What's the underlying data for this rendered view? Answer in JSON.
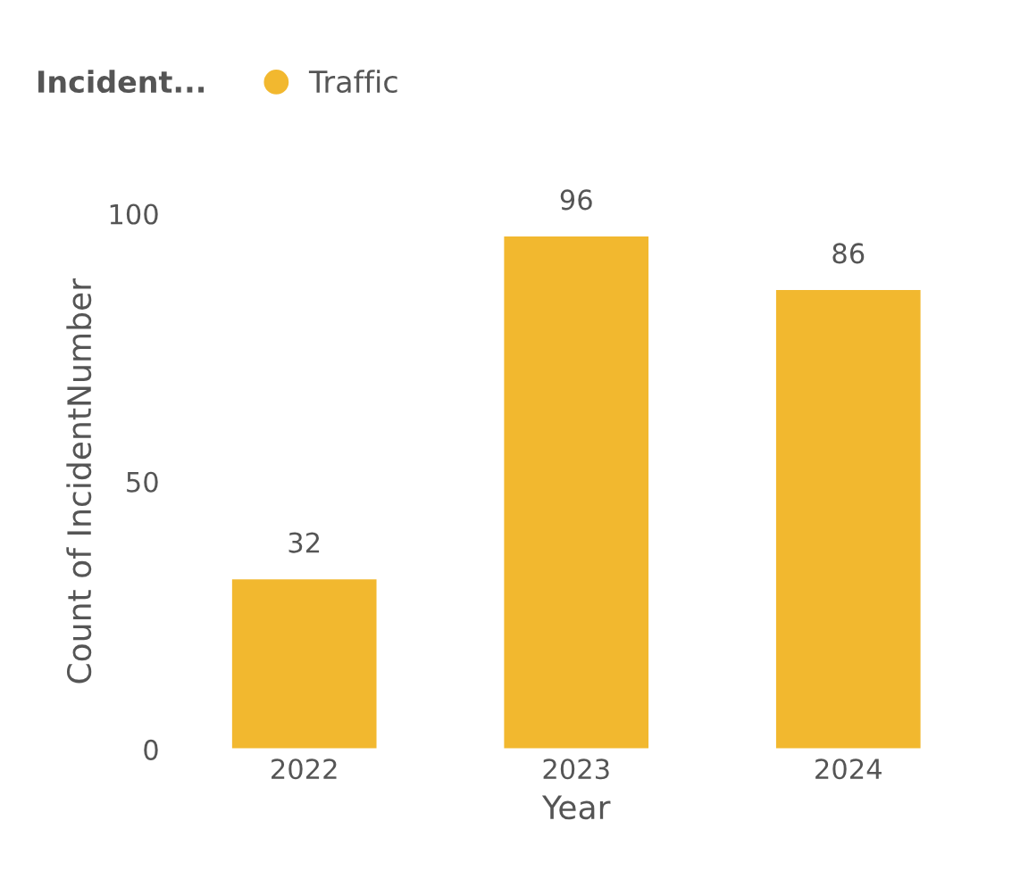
{
  "chart_data": {
    "type": "bar",
    "xlabel": "Year",
    "ylabel": "Count of IncidentNumber",
    "legend_title": "Incident...",
    "legend": "top left",
    "categories": [
      "2022",
      "2023",
      "2024"
    ],
    "series": [
      {
        "name": "Traffic",
        "color": "#f2b82f",
        "values": [
          32,
          96,
          86
        ]
      }
    ],
    "ylim": [
      0,
      100
    ],
    "yticks": [
      0,
      50,
      100
    ],
    "grid": false,
    "data_labels": true
  }
}
